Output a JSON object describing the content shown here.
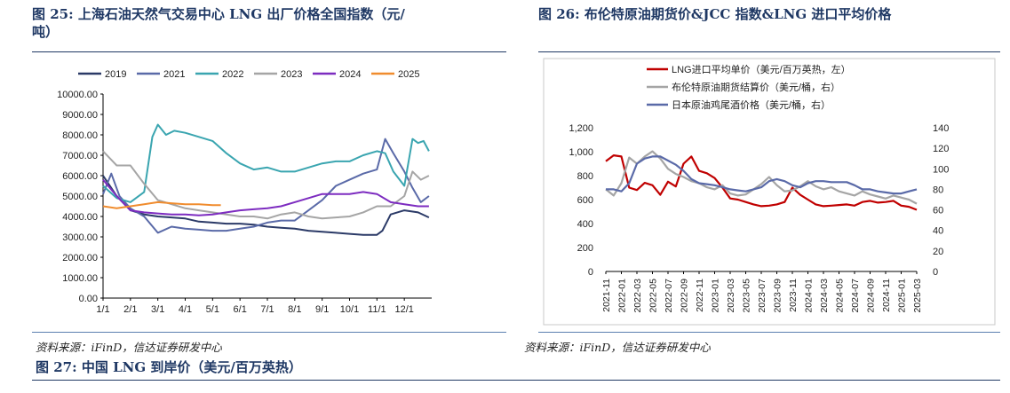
{
  "fig25": {
    "title_line1": "图 25: 上海石油天然气交易中心 LNG 出厂价格全国指数（元/",
    "title_line2": "吨）",
    "source": "资料来源：iFinD，信达证券研发中心"
  },
  "fig26": {
    "title": "图 26: 布伦特原油期货价&JCC 指数&LNG 进口平均价格",
    "source": "资料来源：iFinD，信达证券研发中心"
  },
  "fig27": {
    "title": "图 27: 中国 LNG 到岸价（美元/百万英热）"
  },
  "chart_data": [
    {
      "type": "line",
      "title": "",
      "ylim": [
        0,
        10000
      ],
      "y_ticks": [
        "0.00",
        "1000.00",
        "2000.00",
        "3000.00",
        "4000.00",
        "5000.00",
        "6000.00",
        "7000.00",
        "8000.00",
        "9000.00",
        "10000.00"
      ],
      "x_ticks": [
        "1/1",
        "2/1",
        "3/1",
        "4/1",
        "5/1",
        "6/1",
        "7/1",
        "8/1",
        "9/1",
        "10/1",
        "11/1",
        "12/1"
      ],
      "legend_position": "top",
      "grid": false,
      "series": [
        {
          "name": "2019",
          "color": "#2b3a67",
          "x": [
            0,
            0.5,
            1,
            1.5,
            2,
            2.5,
            3,
            3.5,
            4,
            4.5,
            5,
            5.5,
            6,
            6.5,
            7,
            7.5,
            8,
            8.5,
            9,
            9.5,
            10,
            10.2,
            10.5,
            11,
            11.5,
            11.9
          ],
          "y": [
            6000,
            5000,
            4300,
            4100,
            4000,
            3950,
            3900,
            3750,
            3700,
            3650,
            3650,
            3600,
            3500,
            3450,
            3400,
            3300,
            3250,
            3200,
            3150,
            3100,
            3100,
            3300,
            4100,
            4300,
            4200,
            3950
          ]
        },
        {
          "name": "2021",
          "color": "#5a6aa8",
          "x": [
            0,
            0.3,
            0.6,
            1,
            1.5,
            2,
            2.5,
            3,
            3.5,
            4,
            4.5,
            5,
            5.5,
            6,
            6.5,
            7,
            7.5,
            8,
            8.5,
            9,
            9.5,
            10,
            10.3,
            10.6,
            11,
            11.3,
            11.6,
            11.9
          ],
          "y": [
            5100,
            6100,
            5000,
            4400,
            4000,
            3200,
            3500,
            3400,
            3350,
            3300,
            3300,
            3400,
            3500,
            3700,
            3800,
            3800,
            4300,
            4800,
            5500,
            5800,
            6100,
            6300,
            7800,
            7100,
            6200,
            5400,
            4700,
            5000
          ]
        },
        {
          "name": "2022",
          "color": "#3aa5b0",
          "x": [
            0,
            0.5,
            1,
            1.5,
            1.8,
            2,
            2.3,
            2.6,
            3,
            3.5,
            4,
            4.5,
            5,
            5.5,
            6,
            6.5,
            7,
            7.5,
            8,
            8.5,
            9,
            9.5,
            10,
            10.3,
            10.6,
            11,
            11.3,
            11.5,
            11.7,
            11.9
          ],
          "y": [
            5500,
            4900,
            4700,
            5200,
            7900,
            8500,
            8000,
            8200,
            8100,
            7900,
            7700,
            7100,
            6600,
            6300,
            6400,
            6200,
            6200,
            6400,
            6600,
            6700,
            6700,
            7000,
            7200,
            7100,
            6200,
            5500,
            7800,
            7600,
            7700,
            7200
          ]
        },
        {
          "name": "2023",
          "color": "#a5a5a5",
          "x": [
            0,
            0.5,
            1,
            1.5,
            2,
            2.5,
            3,
            3.5,
            4,
            4.5,
            5,
            5.5,
            6,
            6.5,
            7,
            7.5,
            8,
            8.5,
            9,
            9.5,
            10,
            10.5,
            11,
            11.3,
            11.6,
            11.9
          ],
          "y": [
            7200,
            6500,
            6500,
            5600,
            4800,
            4600,
            4400,
            4300,
            4200,
            4100,
            4000,
            4000,
            3900,
            4100,
            4200,
            4000,
            3900,
            3950,
            4000,
            4200,
            4500,
            4500,
            5000,
            6200,
            5800,
            6000
          ]
        },
        {
          "name": "2024",
          "color": "#7d2cc0",
          "x": [
            0,
            0.5,
            1,
            1.5,
            2,
            2.5,
            3,
            3.5,
            4,
            4.5,
            5,
            5.5,
            6,
            6.5,
            7,
            7.5,
            8,
            8.5,
            9,
            9.5,
            10,
            10.5,
            11,
            11.5,
            11.9
          ],
          "y": [
            5800,
            5000,
            4300,
            4200,
            4150,
            4100,
            4100,
            4050,
            4100,
            4200,
            4300,
            4350,
            4400,
            4500,
            4700,
            4900,
            5100,
            5100,
            5100,
            5200,
            5100,
            4700,
            4600,
            4500,
            4500
          ]
        },
        {
          "name": "2025",
          "color": "#f08c2e",
          "x": [
            0,
            0.5,
            1,
            1.5,
            2,
            2.5,
            3,
            3.5,
            4,
            4.3
          ],
          "y": [
            4500,
            4400,
            4500,
            4600,
            4700,
            4650,
            4600,
            4600,
            4550,
            4550
          ]
        }
      ]
    },
    {
      "type": "line",
      "title": "",
      "y_left_lim": [
        0,
        1200
      ],
      "y_right_lim": [
        0,
        140
      ],
      "y_left_ticks": [
        "0",
        "200",
        "400",
        "600",
        "800",
        "1,000",
        "1,200"
      ],
      "y_right_ticks": [
        "0",
        "20",
        "40",
        "60",
        "80",
        "100",
        "120",
        "140"
      ],
      "x_ticks": [
        "2021-11",
        "2022-01",
        "2022-03",
        "2022-05",
        "2022-07",
        "2022-09",
        "2022-11",
        "2023-01",
        "2023-03",
        "2023-05",
        "2023-07",
        "2023-09",
        "2023-11",
        "2024-01",
        "2024-03",
        "2024-05",
        "2024-07",
        "2024-09",
        "2024-11",
        "2025-01",
        "2025-03"
      ],
      "legend_position": "top",
      "grid": false,
      "series": [
        {
          "name": "LNG进口平均单价（美元/百万英热，左）",
          "color": "#c00000",
          "axis": "left",
          "x": [
            0,
            1,
            2,
            3,
            4,
            5,
            6,
            7,
            8,
            9,
            10,
            11,
            12,
            13,
            14,
            15,
            16,
            17,
            18,
            19,
            20,
            21,
            22,
            23,
            24,
            25,
            26,
            27,
            28,
            29,
            30,
            31,
            32,
            33,
            34,
            35,
            36,
            37,
            38,
            39,
            40
          ],
          "y": [
            920,
            970,
            960,
            700,
            680,
            740,
            720,
            640,
            750,
            710,
            900,
            960,
            840,
            820,
            780,
            700,
            610,
            600,
            580,
            560,
            545,
            550,
            560,
            580,
            700,
            640,
            600,
            560,
            545,
            550,
            555,
            560,
            550,
            580,
            590,
            575,
            580,
            590,
            550,
            540,
            515
          ]
        },
        {
          "name": "布伦特原油期货结算价（美元/桶，右）",
          "color": "#a5a5a5",
          "axis": "right",
          "x": [
            0,
            1,
            2,
            3,
            4,
            5,
            6,
            7,
            8,
            9,
            10,
            11,
            12,
            13,
            14,
            15,
            16,
            17,
            18,
            19,
            20,
            21,
            22,
            23,
            24,
            25,
            26,
            27,
            28,
            29,
            30,
            31,
            32,
            33,
            34,
            35,
            36,
            37,
            38,
            39,
            40
          ],
          "y": [
            80,
            74,
            86,
            111,
            105,
            112,
            117,
            110,
            100,
            95,
            92,
            88,
            86,
            82,
            80,
            84,
            76,
            74,
            75,
            80,
            85,
            92,
            84,
            78,
            79,
            83,
            88,
            83,
            80,
            82,
            78,
            76,
            74,
            78,
            75,
            73,
            71,
            74,
            72,
            70,
            66
          ]
        },
        {
          "name": "日本原油鸡尾酒价格（美元/桶，右）",
          "color": "#5a6aa8",
          "axis": "right",
          "x": [
            0,
            1,
            2,
            3,
            4,
            5,
            6,
            7,
            8,
            9,
            10,
            11,
            12,
            13,
            14,
            15,
            16,
            17,
            18,
            19,
            20,
            21,
            22,
            23,
            24,
            25,
            26,
            27,
            28,
            29,
            30,
            31,
            32,
            33,
            34,
            35,
            36,
            37,
            38,
            39,
            40
          ],
          "y": [
            80,
            80,
            78,
            86,
            105,
            110,
            112,
            112,
            108,
            104,
            98,
            90,
            86,
            85,
            84,
            82,
            80,
            79,
            78,
            80,
            82,
            88,
            90,
            88,
            84,
            82,
            86,
            88,
            88,
            87,
            87,
            87,
            84,
            80,
            80,
            78,
            77,
            76,
            76,
            78,
            80
          ]
        }
      ]
    }
  ]
}
